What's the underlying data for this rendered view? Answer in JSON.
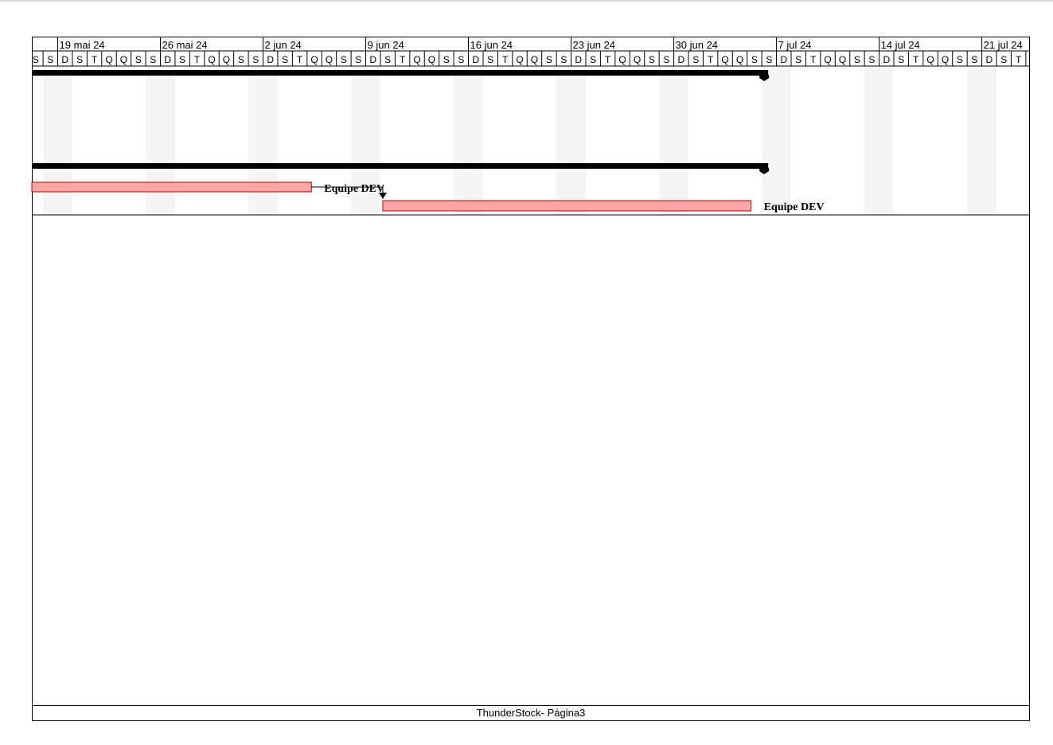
{
  "chart_data": {
    "type": "gantt",
    "weeks": [
      {
        "label": "19 mai 24",
        "start": "2024-05-19"
      },
      {
        "label": "26 mai 24",
        "start": "2024-05-26"
      },
      {
        "label": "2 jun 24",
        "start": "2024-06-02"
      },
      {
        "label": "9 jun 24",
        "start": "2024-06-09"
      },
      {
        "label": "16 jun 24",
        "start": "2024-06-16"
      },
      {
        "label": "23 jun 24",
        "start": "2024-06-23"
      },
      {
        "label": "30 jun 24",
        "start": "2024-06-30"
      },
      {
        "label": "7 jul 24",
        "start": "2024-07-07"
      },
      {
        "label": "14 jul 24",
        "start": "2024-07-14"
      },
      {
        "label": "21 jul 24",
        "start": "2024-07-21"
      }
    ],
    "day_letters": [
      "D",
      "S",
      "T",
      "Q",
      "Q",
      "S",
      "S"
    ],
    "summary_bars": [
      {
        "end": "2024-07-06"
      },
      {
        "end": "2024-07-06"
      }
    ],
    "tasks": [
      {
        "start": "2024-06-06",
        "label": "Equipe DEV",
        "color": "#ffa6a6"
      },
      {
        "start": "2024-06-10",
        "end": "2024-07-05",
        "label": "Equipe DEV",
        "color": "#ffa6a6"
      }
    ]
  },
  "footer": {
    "text": "ThunderStock- Página3"
  }
}
